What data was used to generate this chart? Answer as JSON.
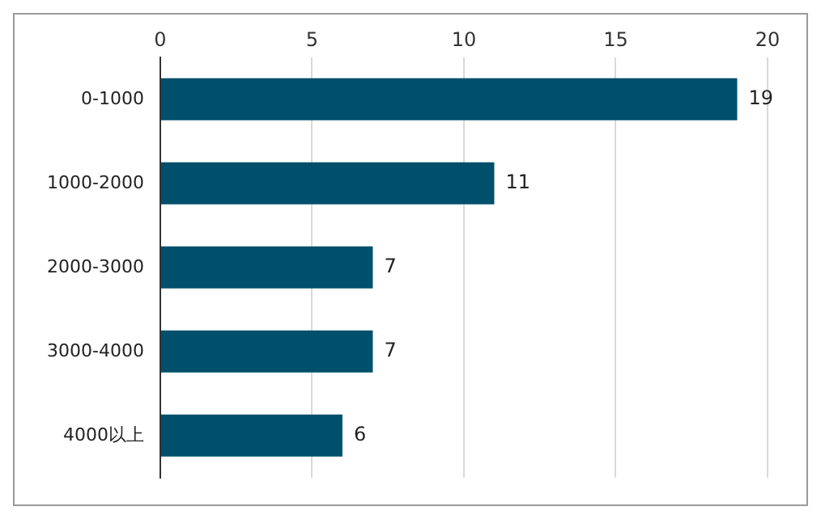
{
  "chart_data": {
    "type": "bar",
    "orientation": "horizontal",
    "categories": [
      "0-1000",
      "1000-2000",
      "2000-3000",
      "3000-4000",
      "4000以上"
    ],
    "values": [
      19,
      11,
      7,
      7,
      6
    ],
    "color": "#00506b",
    "xlim": [
      0,
      20
    ],
    "xticks": [
      0,
      5,
      10,
      15,
      20
    ],
    "grid": "x",
    "data_labels": true,
    "legend": false
  }
}
